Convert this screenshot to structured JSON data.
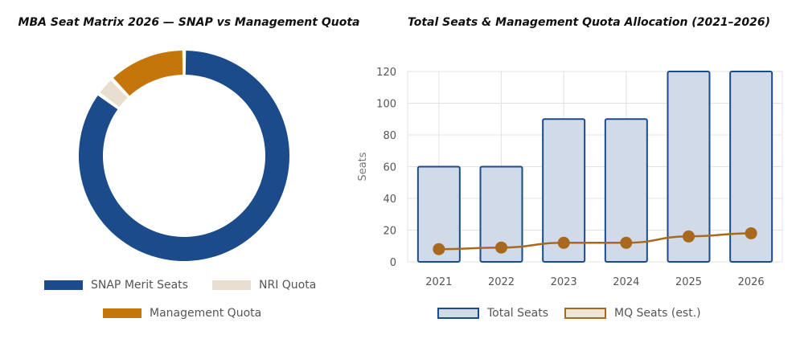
{
  "chart_data": [
    {
      "type": "pie",
      "title": "MBA Seat Matrix 2026 — SNAP vs Management Quota",
      "categories": [
        "SNAP Merit Seats",
        "NRI Quota",
        "Management Quota"
      ],
      "values": [
        85,
        3,
        12
      ],
      "colors": [
        "#1b4b8a",
        "#e8dfd0",
        "#c5760b"
      ],
      "donut": true,
      "legend": "bottom"
    },
    {
      "type": "bar",
      "title": "Total Seats & Management Quota Allocation (2021–2026)",
      "categories": [
        "2021",
        "2022",
        "2023",
        "2024",
        "2025",
        "2026"
      ],
      "ylabel": "Seats",
      "xlabel": "",
      "ylim": [
        0,
        120
      ],
      "yticks": [
        0,
        20,
        40,
        60,
        80,
        100,
        120
      ],
      "grid": true,
      "legend": "bottom",
      "series": [
        {
          "name": "Total Seats",
          "type": "bar",
          "values": [
            60,
            60,
            90,
            90,
            120,
            120
          ],
          "color": "#1b4b8a",
          "fill": "#d1dae8"
        },
        {
          "name": "MQ Seats (est.)",
          "type": "line",
          "values": [
            8,
            9,
            12,
            12,
            16,
            18
          ],
          "color": "#a8691f",
          "fill": "#f2e4d3"
        }
      ]
    }
  ]
}
